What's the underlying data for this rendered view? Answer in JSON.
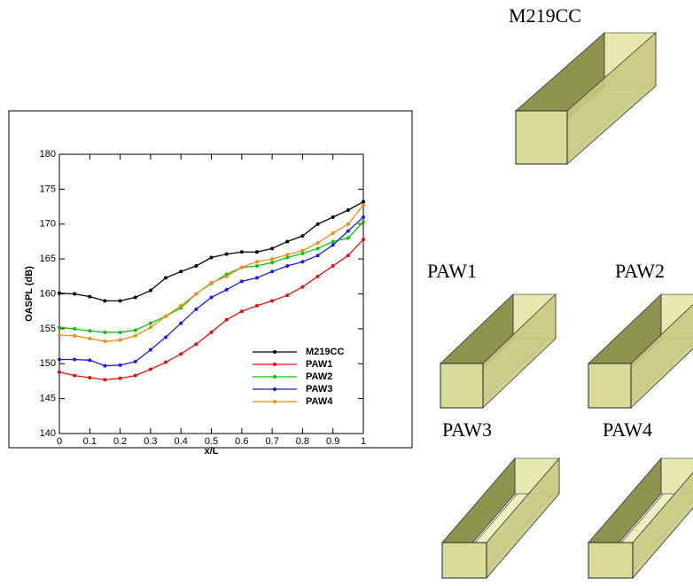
{
  "chart_data": {
    "type": "line",
    "xlabel": "x/L",
    "ylabel": "OASPL (dB)",
    "x": [
      0,
      0.05,
      0.1,
      0.15,
      0.2,
      0.25,
      0.3,
      0.35,
      0.4,
      0.45,
      0.5,
      0.55,
      0.6,
      0.65,
      0.7,
      0.75,
      0.8,
      0.85,
      0.9,
      0.95,
      1
    ],
    "series": [
      {
        "name": "M219CC",
        "color": "#000000",
        "values": [
          160.1,
          160.0,
          159.6,
          159.0,
          159.0,
          159.5,
          160.5,
          162.3,
          163.2,
          164.0,
          165.2,
          165.7,
          166.0,
          166.0,
          166.5,
          167.5,
          168.3,
          170.0,
          171.0,
          172.0,
          173.2
        ]
      },
      {
        "name": "PAW1",
        "color": "#e01010",
        "values": [
          148.8,
          148.3,
          148.0,
          147.7,
          147.9,
          148.3,
          149.2,
          150.2,
          151.4,
          152.8,
          154.5,
          156.3,
          157.5,
          158.3,
          159.0,
          159.8,
          161.0,
          162.5,
          164.0,
          165.5,
          167.8
        ]
      },
      {
        "name": "PAW2",
        "color": "#10c010",
        "values": [
          155.2,
          155.0,
          154.7,
          154.5,
          154.5,
          154.8,
          155.8,
          156.8,
          158.0,
          160.0,
          161.5,
          162.8,
          163.8,
          164.0,
          164.5,
          165.2,
          165.8,
          166.5,
          167.5,
          168.0,
          170.3
        ]
      },
      {
        "name": "PAW3",
        "color": "#1a1aee",
        "values": [
          150.6,
          150.6,
          150.5,
          149.7,
          149.8,
          150.3,
          152.0,
          153.8,
          155.8,
          157.8,
          159.5,
          160.6,
          161.8,
          162.3,
          163.2,
          164.0,
          164.6,
          165.5,
          167.0,
          169.0,
          171.0
        ]
      },
      {
        "name": "PAW4",
        "color": "#f08c10",
        "values": [
          154.1,
          154.0,
          153.6,
          153.2,
          153.4,
          154.0,
          155.2,
          156.8,
          158.3,
          160.0,
          161.6,
          162.5,
          163.8,
          164.6,
          165.0,
          165.6,
          166.2,
          167.3,
          168.7,
          170.0,
          172.7
        ]
      }
    ],
    "xlim": [
      0,
      1
    ],
    "xticks": [
      0,
      0.1,
      0.2,
      0.3,
      0.4,
      0.5,
      0.6,
      0.7,
      0.8,
      0.9,
      1
    ],
    "ylim": [
      140,
      180
    ],
    "yticks": [
      140,
      145,
      150,
      155,
      160,
      165,
      170,
      175,
      180
    ],
    "legend": "lower right"
  },
  "cavity_labels": [
    "M219CC",
    "PAW1",
    "PAW2",
    "PAW3",
    "PAW4"
  ]
}
